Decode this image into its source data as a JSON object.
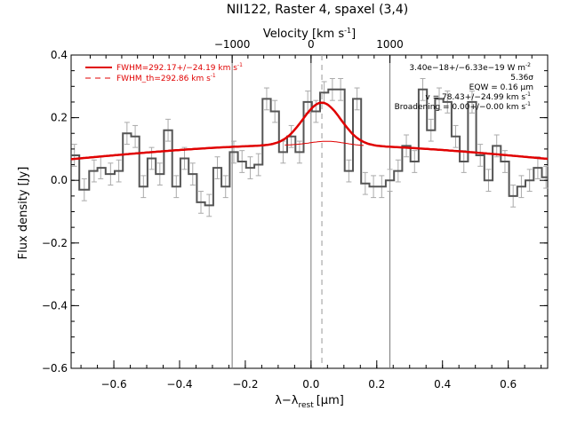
{
  "chart_data": {
    "type": "line",
    "title": "NII122, Raster 4, spaxel (3,4)",
    "xlabel_main": "λ−λ",
    "xlabel_sub": "rest",
    "xlabel_unit": "[μm]",
    "ylabel": "Flux density [Jy]",
    "top_xlabel": "Velocity [km s",
    "top_xlabel_sup": "-1",
    "top_xlabel_close": "]",
    "xlim": [
      -0.73,
      0.72
    ],
    "ylim": [
      -0.6,
      0.4
    ],
    "x_ticks": [
      -0.6,
      -0.4,
      -0.2,
      0.0,
      0.2,
      0.4,
      0.6
    ],
    "x_tick_labels": [
      "−0.6",
      "−0.4",
      "−0.2",
      "0.0",
      "0.2",
      "0.4",
      "0.6"
    ],
    "y_ticks": [
      -0.6,
      -0.4,
      -0.2,
      0.0,
      0.2,
      0.4
    ],
    "y_tick_labels": [
      "−0.6",
      "−0.4",
      "−0.2",
      "0.0",
      "0.2",
      "0.4"
    ],
    "top_ticks": [
      -1000,
      0,
      1000
    ],
    "top_tick_labels": [
      "−1000",
      "0",
      "1000"
    ],
    "km_per_micron": 4166.7,
    "vlines_solid": [
      -0.24,
      0.0,
      0.24
    ],
    "vline_dashed": 0.033,
    "legend": [
      {
        "label": "FWHM=292.17+/−24.19 km s",
        "sup": "-1",
        "style": "solid",
        "color": "#e00000"
      },
      {
        "label": "FWHM_th=292.86 km s",
        "sup": "-1",
        "style": "dashed",
        "color": "#e00000"
      }
    ],
    "annotations": [
      {
        "text": "3.40e−18+/−6.33e−19 W m",
        "sup": "-2"
      },
      {
        "text": "5.36σ",
        "sup": ""
      },
      {
        "text": "EQW = 0.16 μm",
        "sup": ""
      },
      {
        "text": "v = 78.43+/−24.99 km s",
        "sup": "-1"
      },
      {
        "text": "Broadening = 0.00+/−0.00 km s",
        "sup": "-1"
      }
    ],
    "series": [
      {
        "kind": "step",
        "color": "#555555",
        "x": [
          -0.72,
          -0.69,
          -0.66,
          -0.64,
          -0.61,
          -0.585,
          -0.56,
          -0.535,
          -0.51,
          -0.485,
          -0.46,
          -0.435,
          -0.41,
          -0.385,
          -0.36,
          -0.335,
          -0.31,
          -0.285,
          -0.26,
          -0.235,
          -0.21,
          -0.185,
          -0.16,
          -0.135,
          -0.11,
          -0.085,
          -0.06,
          -0.035,
          -0.01,
          0.015,
          0.04,
          0.065,
          0.09,
          0.115,
          0.14,
          0.165,
          0.19,
          0.215,
          0.24,
          0.265,
          0.29,
          0.315,
          0.34,
          0.365,
          0.39,
          0.415,
          0.44,
          0.465,
          0.49,
          0.515,
          0.54,
          0.565,
          0.59,
          0.615,
          0.64,
          0.665,
          0.69,
          0.715
        ],
        "y": [
          0.08,
          -0.03,
          0.03,
          0.04,
          0.02,
          0.03,
          0.15,
          0.14,
          -0.02,
          0.07,
          0.02,
          0.16,
          -0.02,
          0.07,
          0.02,
          -0.07,
          -0.08,
          0.04,
          -0.02,
          0.09,
          0.06,
          0.04,
          0.05,
          0.26,
          0.22,
          0.09,
          0.14,
          0.09,
          0.25,
          0.22,
          0.28,
          0.29,
          0.29,
          0.03,
          0.26,
          -0.01,
          -0.02,
          -0.02,
          0.0,
          0.03,
          0.11,
          0.06,
          0.29,
          0.16,
          0.26,
          0.25,
          0.14,
          0.06,
          0.25,
          0.08,
          0.0,
          0.11,
          0.06,
          -0.05,
          -0.02,
          0.0,
          0.04,
          0.01
        ],
        "err": 0.035
      },
      {
        "kind": "fit",
        "name": "FWHM=292.17+/−24.19 km s-1",
        "color": "#e00000",
        "continuum_peak": 0.113,
        "continuum_center": 0.0,
        "continuum_sigma": 0.72,
        "gauss_amp": 0.135,
        "gauss_center": 0.033,
        "gauss_sigma": 0.058
      }
    ]
  }
}
